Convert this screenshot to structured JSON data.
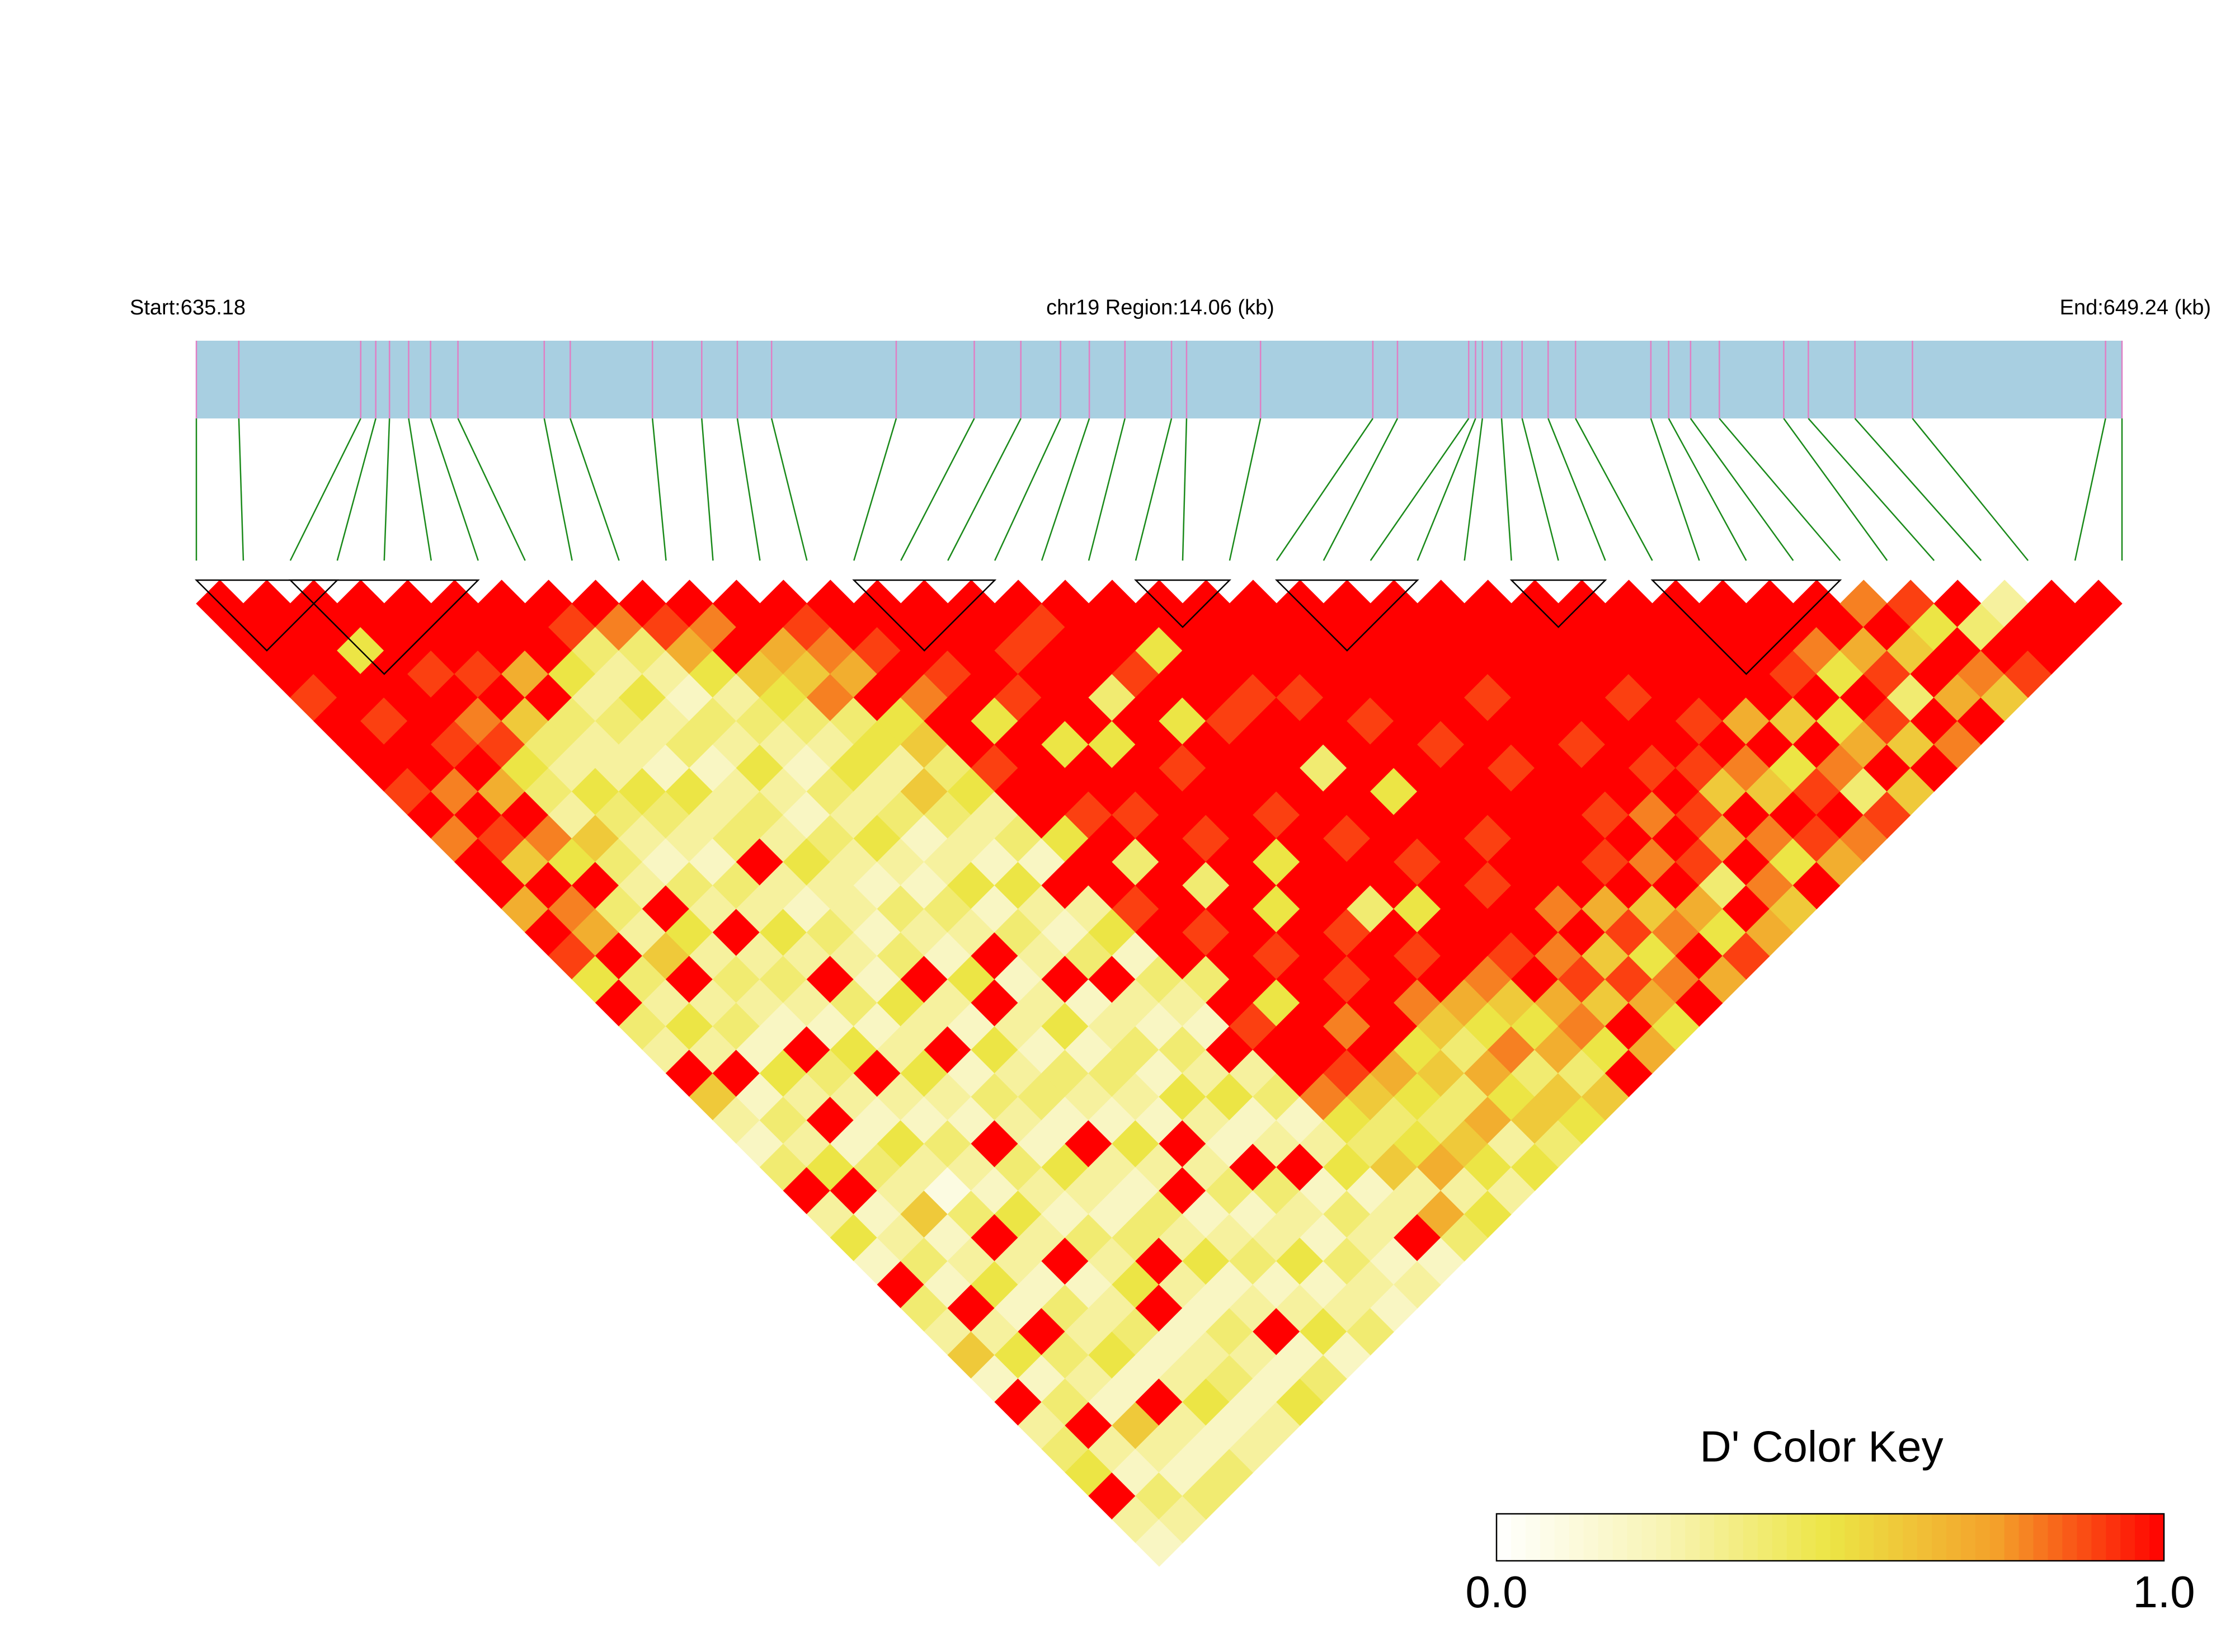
{
  "chart_data": {
    "type": "ld_heatmap",
    "start_label": "Start:635.18",
    "title": "chr19 Region:14.06 (kb)",
    "end_label": "End:649.24 (kb)",
    "bar_color": "#a8cfe1",
    "marker_color": "#e07fc4",
    "connector_color": "#1a8a1a",
    "block_color": "#000000",
    "positions": [
      635.18,
      635.49,
      636.38,
      636.49,
      636.59,
      636.73,
      636.89,
      637.09,
      637.72,
      637.91,
      638.51,
      638.87,
      639.13,
      639.38,
      640.29,
      640.86,
      641.2,
      641.49,
      641.7,
      641.96,
      642.3,
      642.41,
      642.95,
      643.77,
      643.95,
      644.47,
      644.52,
      644.57,
      644.71,
      644.86,
      645.05,
      645.25,
      645.8,
      645.93,
      646.09,
      646.3,
      646.77,
      646.95,
      647.29,
      647.71,
      649.12,
      649.24
    ],
    "blocks": [
      [
        0,
        3
      ],
      [
        2,
        6
      ],
      [
        14,
        17
      ],
      [
        20,
        22
      ],
      [
        23,
        26
      ],
      [
        28,
        30
      ],
      [
        31,
        35
      ]
    ],
    "dprime": [
      [
        1,
        1,
        1,
        1,
        0.9,
        1,
        1,
        1,
        0.9,
        1,
        0.8,
        1,
        1,
        0.7,
        1,
        0.9,
        0.5,
        1,
        0.4,
        0.3,
        1,
        0.6,
        0.3,
        0.2,
        0.4,
        1,
        0.3,
        0.5,
        0.2,
        1,
        0.4,
        0.3,
        0.6,
        0.2,
        1,
        0.3,
        0.4,
        0.5,
        1,
        0.3,
        0.2
      ],
      [
        1,
        1,
        1,
        1,
        1,
        0.9,
        1,
        1,
        0.8,
        1,
        0.9,
        0.6,
        1,
        0.8,
        0.7,
        1,
        0.4,
        0.3,
        0.5,
        0.3,
        1,
        0.2,
        0.4,
        0.3,
        0.5,
        1,
        0.2,
        0.3,
        0.4,
        0.2,
        1,
        0.3,
        0.5,
        0.2,
        0.4,
        1,
        0.3,
        0.2,
        0.4,
        0.3
      ],
      [
        1,
        1,
        0.5,
        1,
        1,
        1,
        0.9,
        1,
        0.7,
        1,
        0.8,
        0.5,
        1,
        0.4,
        0.3,
        0.6,
        1,
        0.3,
        0.4,
        0.2,
        0.5,
        0.3,
        1,
        0.2,
        0.4,
        0.3,
        0.6,
        0.2,
        0.3,
        0.5,
        0.2,
        1,
        0.4,
        0.3,
        0.2,
        0.6,
        0.3,
        0.2,
        0.4
      ],
      [
        1,
        1,
        1,
        0.9,
        1,
        0.8,
        0.9,
        0.5,
        0.4,
        0.3,
        0.6,
        0.4,
        0.3,
        1,
        0.5,
        0.3,
        0.4,
        0.3,
        0.2,
        1,
        0.4,
        0.3,
        0.2,
        0.5,
        0.3,
        0.1,
        0.4,
        1,
        0.3,
        0.2,
        0.4,
        0.3,
        0.5,
        0.2,
        1,
        0.3,
        0.2,
        0.4
      ],
      [
        1,
        1,
        1,
        0.9,
        1,
        0.6,
        0.4,
        0.3,
        0.5,
        0.4,
        0.3,
        0.2,
        0.4,
        0.3,
        1,
        0.3,
        0.4,
        0.3,
        0.2,
        0.5,
        1,
        0.3,
        0.2,
        0.4,
        0.3,
        0.2,
        0.5,
        0.3,
        1,
        0.2,
        0.3,
        0.4,
        0.2,
        0.3,
        0.5,
        0.2,
        0.3
      ],
      [
        1,
        1,
        1,
        0.7,
        1,
        0.4,
        0.3,
        0.3,
        0.5,
        0.4,
        0.3,
        0.2,
        0.4,
        0.3,
        0.5,
        0.3,
        1,
        0.4,
        0.2,
        0.3,
        0.5,
        0.3,
        0.2,
        1,
        0.4,
        0.3,
        0.2,
        0.4,
        0.3,
        0.5,
        1,
        0.2,
        0.3,
        0.4,
        0.2,
        0.3
      ],
      [
        1,
        1,
        1,
        0.5,
        0.3,
        0.4,
        0.3,
        0.2,
        0.5,
        0.3,
        0.4,
        1,
        0.3,
        0.2,
        0.4,
        0.3,
        0.2,
        0.5,
        0.3,
        1,
        0.2,
        0.4,
        0.3,
        0.2,
        0.5,
        0.3,
        0.2,
        0.4,
        1,
        0.3,
        0.2,
        0.4,
        0.3,
        0.2,
        0.5
      ],
      [
        1,
        0.9,
        0.4,
        0.3,
        0.5,
        0.3,
        0.4,
        0.2,
        0.3,
        0.4,
        0.3,
        0.5,
        0.3,
        0.3,
        0.2,
        0.4,
        1,
        0.3,
        0.2,
        0.5,
        0.3,
        0.4,
        0.2,
        1,
        0.3,
        0.2,
        0.4,
        0.3,
        0.5,
        0.2,
        0.3,
        1,
        0.2,
        0.4
      ],
      [
        1,
        0.8,
        0.4,
        0.3,
        0.2,
        0.4,
        0.3,
        0.5,
        0.3,
        0.2,
        0.4,
        0.3,
        0.2,
        0.4,
        0.3,
        0.2,
        0.5,
        1,
        0.3,
        0.2,
        0.4,
        0.3,
        0.2,
        0.5,
        0.3,
        1,
        0.2,
        0.3,
        0.4,
        0.2,
        0.3,
        0.5,
        0.2
      ],
      [
        1,
        0.9,
        0.7,
        0.5,
        0.3,
        0.4,
        0.3,
        0.2,
        0.4,
        0.3,
        0.5,
        0.3,
        0.2,
        0.4,
        0.3,
        1,
        0.2,
        0.3,
        0.5,
        0.2,
        0.4,
        0.3,
        0.2,
        1,
        0.3,
        0.4,
        0.2,
        0.3,
        0.5,
        0.2,
        0.3,
        0.4
      ],
      [
        1,
        0.8,
        1,
        0.6,
        0.5,
        0.4,
        0.3,
        0.5,
        0.3,
        0.4,
        0.2,
        0.3,
        0.5,
        0.2,
        0.4,
        0.3,
        1,
        0.2,
        0.3,
        0.4,
        0.2,
        0.5,
        0.3,
        0.2,
        1,
        0.4,
        0.3,
        0.2,
        0.4,
        0.3,
        0.2
      ],
      [
        1,
        1,
        0.7,
        0.6,
        0.8,
        0.4,
        0.5,
        0.3,
        0.6,
        0.4,
        0.3,
        0.2,
        0.5,
        0.3,
        0.2,
        0.4,
        1,
        0.3,
        0.2,
        0.4,
        0.3,
        0.5,
        0.2,
        0.3,
        1,
        0.2,
        0.4,
        0.3,
        0.2,
        0.3
      ],
      [
        1,
        0.9,
        0.8,
        0.7,
        1,
        0.5,
        0.6,
        0.4,
        0.5,
        0.3,
        0.4,
        0.2,
        1,
        0.3,
        0.5,
        0.2,
        0.4,
        0.3,
        0.2,
        1,
        0.3,
        0.4,
        0.2,
        0.3,
        0.5,
        0.2,
        0.3,
        1,
        0.2
      ],
      [
        1,
        1,
        0.9,
        1,
        0.8,
        1,
        1,
        0.9,
        1,
        1,
        0.5,
        1,
        1,
        0.9,
        1,
        1,
        0.4,
        1,
        0.9,
        1,
        1,
        0.8,
        0.5,
        0.4,
        0.6,
        0.3,
        0.7,
        0.4
      ],
      [
        1,
        1,
        1,
        0.9,
        1,
        0.5,
        1,
        1,
        1,
        0.9,
        1,
        0.4,
        1,
        1,
        0.9,
        1,
        1,
        0.5,
        1,
        1,
        0.9,
        0.6,
        0.4,
        0.5,
        0.7,
        0.3,
        0.5
      ],
      [
        1,
        1,
        1,
        1,
        0.9,
        1,
        0.5,
        1,
        1,
        0.9,
        1,
        1,
        0.4,
        1,
        1,
        0.9,
        1,
        1,
        0.8,
        1,
        0.7,
        0.5,
        0.4,
        0.6,
        0.5,
        0.3
      ],
      [
        1,
        1,
        0.9,
        1,
        1,
        1,
        0.5,
        1,
        1,
        1,
        0.9,
        1,
        1,
        0.5,
        1,
        1,
        0.9,
        1,
        1,
        0.5,
        0.6,
        0.4,
        0.7,
        0.3,
        0.5
      ],
      [
        1,
        0.9,
        1,
        1,
        0.4,
        1,
        1,
        0.9,
        1,
        1,
        1,
        0.5,
        1,
        1,
        0.9,
        1,
        1,
        0.8,
        0.6,
        0.4,
        0.7,
        0.5,
        0.6,
        0.4
      ],
      [
        1,
        1,
        1,
        0.9,
        1,
        0.5,
        1,
        1,
        1,
        0.9,
        1,
        1,
        1,
        0.4,
        1,
        0.9,
        1,
        0.7,
        0.5,
        0.8,
        0.4,
        0.6,
        0.5
      ],
      [
        1,
        1,
        0.5,
        1,
        1,
        0.9,
        1,
        1,
        1,
        1,
        0.9,
        1,
        1,
        0.5,
        1,
        1,
        0.8,
        0.6,
        0.5,
        0.7,
        0.4,
        0.6
      ],
      [
        1,
        1,
        1,
        1,
        0.9,
        1,
        1,
        0.4,
        1,
        1,
        1,
        0.9,
        1,
        1,
        1,
        0.9,
        1,
        0.7,
        0.8,
        0.5,
        1
      ],
      [
        1,
        1,
        1,
        1,
        0.9,
        1,
        1,
        1,
        0.5,
        1,
        1,
        1,
        0.9,
        1,
        1,
        0.8,
        0.9,
        0.6,
        1,
        0.7
      ],
      [
        1,
        1,
        1,
        1,
        1,
        0.9,
        1,
        1,
        1,
        1,
        0.9,
        1,
        1,
        0.8,
        1,
        0.6,
        0.9,
        0.7,
        0.5
      ],
      [
        1,
        1,
        1,
        1,
        1,
        1,
        0.9,
        1,
        1,
        1,
        1,
        1,
        1,
        0.7,
        0.9,
        0.5,
        0.8,
        1
      ],
      [
        1,
        1,
        1,
        1,
        1,
        1,
        1,
        0.9,
        1,
        1,
        1,
        0.9,
        1,
        0.6,
        0.8,
        1,
        0.7
      ],
      [
        1,
        1,
        1,
        1,
        0.9,
        1,
        1,
        1,
        1,
        0.9,
        1,
        0.8,
        1,
        0.7,
        0.5,
        0.9
      ],
      [
        1,
        1,
        1,
        1,
        1,
        1,
        0.9,
        1,
        1,
        0.8,
        1,
        0.9,
        0.4,
        1,
        0.7
      ],
      [
        1,
        1,
        1,
        1,
        1,
        1,
        1,
        0.9,
        1,
        0.9,
        0.7,
        1,
        0.8,
        0.6
      ],
      [
        1,
        1,
        1,
        1,
        0.9,
        1,
        1,
        0.9,
        0.6,
        1,
        0.8,
        0.5,
        1
      ],
      [
        1,
        1,
        1,
        1,
        1,
        0.9,
        1,
        0.8,
        0.6,
        1,
        0.9,
        0.7
      ],
      [
        1,
        1,
        1,
        1,
        1,
        0.7,
        1,
        0.5,
        0.9,
        1,
        0.8
      ],
      [
        1,
        1,
        1,
        1,
        1,
        0.6,
        1,
        0.8,
        0.4,
        0.9
      ],
      [
        1,
        1,
        1,
        0.9,
        1,
        0.5,
        0.7,
        1,
        0.6
      ],
      [
        1,
        1,
        0.8,
        0.5,
        1,
        0.9,
        0.6,
        1
      ],
      [
        1,
        1,
        0.7,
        0.9,
        0.4,
        1,
        0.8
      ],
      [
        0.8,
        1,
        0.6,
        1,
        0.7,
        1
      ],
      [
        0.9,
        0.5,
        1,
        0.8,
        0.6
      ],
      [
        1,
        0.4,
        1,
        0.9
      ],
      [
        0.3,
        1,
        1
      ],
      [
        1,
        1
      ],
      [
        1
      ]
    ],
    "colorscale": [
      "#ffffff",
      "#f8f4b4",
      "#ece545",
      "#f4a02a",
      "#ff0000"
    ],
    "colorbar": {
      "title": "D' Color Key",
      "lim": [
        0,
        1
      ],
      "ticks": [
        {
          "value": 0,
          "label": "0.0"
        },
        {
          "value": 1,
          "label": "1.0"
        }
      ]
    }
  }
}
